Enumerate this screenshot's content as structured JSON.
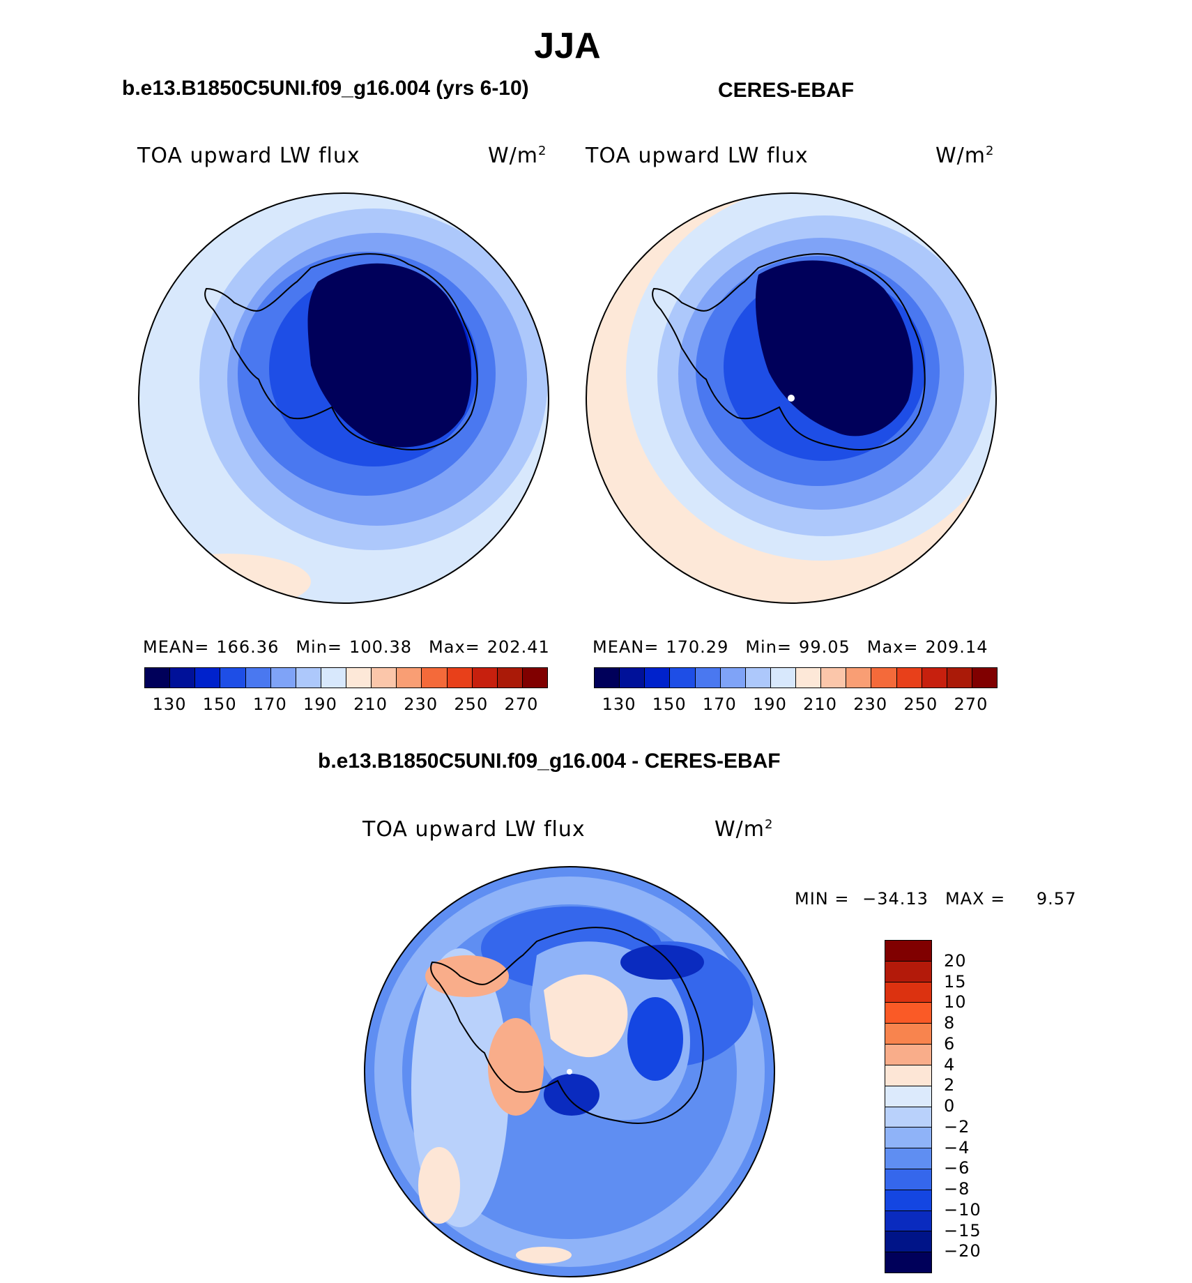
{
  "title": "JJA",
  "panels": {
    "model": {
      "title": "b.e13.B1850C5UNI.f09_g16.004 (yrs 6-10)",
      "variable": "TOA upward LW flux",
      "units_base": "W/m",
      "units_sup": "2",
      "mean_label": "MEAN=",
      "mean": "166.36",
      "min_label": "Min=",
      "min": "100.38",
      "max_label": "Max=",
      "max": "202.41"
    },
    "obs": {
      "title": "CERES-EBAF",
      "variable": "TOA upward LW flux",
      "units_base": "W/m",
      "units_sup": "2",
      "mean_label": "MEAN=",
      "mean": "170.29",
      "min_label": "Min=",
      "min": "99.05",
      "max_label": "Max=",
      "max": "209.14"
    },
    "diff": {
      "title": "b.e13.B1850C5UNI.f09_g16.004 - CERES-EBAF",
      "variable": "TOA upward LW flux",
      "units_base": "W/m",
      "units_sup": "2",
      "min_label": "MIN =",
      "min": "−34.13",
      "max_label": "MAX =",
      "max": "9.57"
    }
  },
  "colorbar_abs": {
    "colors": [
      "#00005a",
      "#001199",
      "#0022cc",
      "#1e4ee6",
      "#4a78f0",
      "#7fa3f7",
      "#adc8fb",
      "#d8e8fc",
      "#fde8d8",
      "#fbc6aa",
      "#f99e74",
      "#f46a3a",
      "#e8401a",
      "#c7200e",
      "#aa1a08",
      "#800000"
    ],
    "labels": [
      "130",
      "150",
      "170",
      "190",
      "210",
      "230",
      "250",
      "270"
    ]
  },
  "colorbar_diff": {
    "colors": [
      "#800000",
      "#b31a0a",
      "#dc3210",
      "#fa5a26",
      "#f8844e",
      "#f9ad8a",
      "#fde6d6",
      "#dceafc",
      "#b9d1fb",
      "#8fb3f8",
      "#5f8ef2",
      "#3567ec",
      "#1446e2",
      "#0a2bbf",
      "#001488",
      "#00005a"
    ],
    "labels": [
      "20",
      "15",
      "10",
      "8",
      "6",
      "4",
      "2",
      "0",
      "−2",
      "−4",
      "−6",
      "−8",
      "−10",
      "−15",
      "−20"
    ]
  }
}
